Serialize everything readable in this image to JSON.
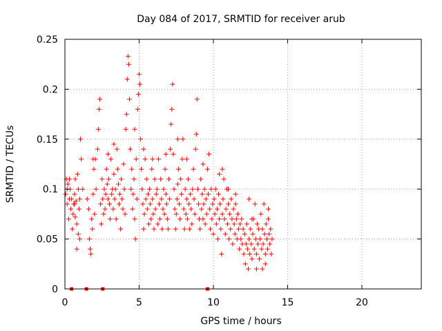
{
  "colors": {
    "series": "#ff0000",
    "axis": "#000000",
    "grid": "#a0a0a0",
    "background": "#ffffff"
  },
  "chart_data": {
    "type": "scatter",
    "title": "Day 084 of 2017, SRMTID for receiver arub",
    "xlabel": "GPS time / hours",
    "ylabel": "SRMTID / TECUs",
    "xlim": [
      0,
      24
    ],
    "ylim": [
      0,
      0.25
    ],
    "xticks": [
      0,
      5,
      10,
      15,
      20
    ],
    "xtick_labels": [
      "0",
      "5",
      "10",
      "15",
      "20"
    ],
    "yticks": [
      0,
      0.05,
      0.1,
      0.15,
      0.2,
      0.25
    ],
    "ytick_labels": [
      "0",
      "0.05",
      "0.1",
      "0.15",
      "0.2",
      "0.25"
    ],
    "grid": true,
    "marker": "plus",
    "zero_markers_x": [
      0.45,
      1.45,
      2.55,
      9.6
    ],
    "series": [
      {
        "name": "SRMTID",
        "points": [
          [
            0.05,
            0.095
          ],
          [
            0.1,
            0.11
          ],
          [
            0.15,
            0.085
          ],
          [
            0.2,
            0.105
          ],
          [
            0.25,
            0.07
          ],
          [
            0.3,
            0.09
          ],
          [
            0.35,
            0.1
          ],
          [
            0.4,
            0.08
          ],
          [
            0.5,
            0.06
          ],
          [
            0.55,
            0.075
          ],
          [
            0.6,
            0.085
          ],
          [
            0.65,
            0.095
          ],
          [
            0.7,
            0.072
          ],
          [
            0.75,
            0.088
          ],
          [
            0.8,
            0.065
          ],
          [
            0.85,
            0.115
          ],
          [
            0.9,
            0.1
          ],
          [
            0.95,
            0.08
          ],
          [
            1.0,
            0.09
          ],
          [
            1.05,
            0.15
          ],
          [
            1.1,
            0.13
          ],
          [
            0.8,
            0.04
          ],
          [
            0.9,
            0.055
          ],
          [
            1.0,
            0.05
          ],
          [
            0.3,
            0.11
          ],
          [
            0.15,
            0.1
          ],
          [
            0.45,
            0.09
          ],
          [
            0.65,
            0.085
          ],
          [
            1.5,
            0.09
          ],
          [
            1.6,
            0.08
          ],
          [
            1.65,
            0.05
          ],
          [
            1.7,
            0.04
          ],
          [
            1.75,
            0.035
          ],
          [
            1.8,
            0.07
          ],
          [
            1.85,
            0.06
          ],
          [
            1.9,
            0.095
          ],
          [
            1.95,
            0.12
          ],
          [
            2.0,
            0.075
          ],
          [
            2.05,
            0.13
          ],
          [
            2.1,
            0.1
          ],
          [
            2.2,
            0.14
          ],
          [
            2.25,
            0.16
          ],
          [
            2.3,
            0.18
          ],
          [
            2.35,
            0.19
          ],
          [
            2.4,
            0.085
          ],
          [
            2.45,
            0.065
          ],
          [
            2.5,
            0.11
          ],
          [
            2.55,
            0.09
          ],
          [
            2.6,
            0.075
          ],
          [
            2.65,
            0.1
          ],
          [
            2.7,
            0.08
          ],
          [
            2.75,
            0.095
          ],
          [
            2.8,
            0.12
          ],
          [
            2.85,
            0.105
          ],
          [
            2.9,
            0.09
          ],
          [
            2.95,
            0.11
          ],
          [
            3.0,
            0.085
          ],
          [
            3.05,
            0.07
          ],
          [
            3.1,
            0.13
          ],
          [
            3.15,
            0.095
          ],
          [
            3.2,
            0.1
          ],
          [
            3.25,
            0.08
          ],
          [
            3.3,
            0.115
          ],
          [
            3.35,
            0.09
          ],
          [
            3.4,
            0.1
          ],
          [
            3.45,
            0.07
          ],
          [
            3.5,
            0.14
          ],
          [
            3.55,
            0.12
          ],
          [
            3.6,
            0.105
          ],
          [
            3.65,
            0.085
          ],
          [
            3.7,
            0.095
          ],
          [
            3.75,
            0.06
          ],
          [
            3.8,
            0.11
          ],
          [
            3.85,
            0.09
          ],
          [
            3.9,
            0.08
          ],
          [
            3.95,
            0.125
          ],
          [
            4.0,
            0.1
          ],
          [
            4.05,
            0.075
          ],
          [
            4.1,
            0.16
          ],
          [
            4.15,
            0.175
          ],
          [
            4.2,
            0.21
          ],
          [
            4.25,
            0.233
          ],
          [
            4.3,
            0.225
          ],
          [
            4.35,
            0.19
          ],
          [
            4.4,
            0.14
          ],
          [
            4.45,
            0.1
          ],
          [
            4.5,
            0.12
          ],
          [
            4.55,
            0.08
          ],
          [
            4.6,
            0.095
          ],
          [
            4.65,
            0.11
          ],
          [
            4.7,
            0.07
          ],
          [
            4.75,
            0.05
          ],
          [
            4.8,
            0.13
          ],
          [
            4.85,
            0.09
          ],
          [
            4.9,
            0.18
          ],
          [
            4.95,
            0.195
          ],
          [
            5.0,
            0.215
          ],
          [
            5.05,
            0.205
          ],
          [
            5.1,
            0.15
          ],
          [
            5.15,
            0.12
          ],
          [
            5.2,
            0.1
          ],
          [
            5.25,
            0.085
          ],
          [
            5.3,
            0.06
          ],
          [
            5.35,
            0.075
          ],
          [
            5.4,
            0.13
          ],
          [
            5.45,
            0.09
          ],
          [
            5.5,
            0.11
          ],
          [
            5.55,
            0.08
          ],
          [
            5.6,
            0.095
          ],
          [
            5.65,
            0.065
          ],
          [
            5.7,
            0.1
          ],
          [
            5.75,
            0.085
          ],
          [
            5.8,
            0.07
          ],
          [
            5.85,
            0.12
          ],
          [
            5.9,
            0.09
          ],
          [
            5.95,
            0.075
          ],
          [
            6.0,
            0.06
          ],
          [
            6.05,
            0.11
          ],
          [
            6.1,
            0.08
          ],
          [
            6.15,
            0.095
          ],
          [
            6.2,
            0.1
          ],
          [
            6.25,
            0.065
          ],
          [
            6.3,
            0.13
          ],
          [
            6.35,
            0.085
          ],
          [
            6.4,
            0.07
          ],
          [
            6.45,
            0.11
          ],
          [
            6.5,
            0.09
          ],
          [
            6.55,
            0.06
          ],
          [
            6.6,
            0.08
          ],
          [
            6.65,
            0.1
          ],
          [
            6.7,
            0.075
          ],
          [
            6.75,
            0.12
          ],
          [
            6.8,
            0.095
          ],
          [
            6.85,
            0.085
          ],
          [
            6.9,
            0.07
          ],
          [
            6.95,
            0.06
          ],
          [
            7.0,
            0.11
          ],
          [
            7.05,
            0.09
          ],
          [
            7.1,
            0.14
          ],
          [
            7.15,
            0.165
          ],
          [
            7.2,
            0.18
          ],
          [
            7.25,
            0.205
          ],
          [
            7.3,
            0.135
          ],
          [
            7.35,
            0.1
          ],
          [
            7.4,
            0.08
          ],
          [
            7.45,
            0.06
          ],
          [
            7.5,
            0.075
          ],
          [
            7.55,
            0.09
          ],
          [
            7.6,
            0.105
          ],
          [
            7.65,
            0.12
          ],
          [
            7.7,
            0.085
          ],
          [
            7.75,
            0.07
          ],
          [
            7.8,
            0.11
          ],
          [
            7.85,
            0.095
          ],
          [
            7.9,
            0.13
          ],
          [
            7.95,
            0.15
          ],
          [
            8.0,
            0.08
          ],
          [
            8.05,
            0.06
          ],
          [
            8.1,
            0.1
          ],
          [
            8.15,
            0.075
          ],
          [
            8.2,
            0.09
          ],
          [
            8.25,
            0.07
          ],
          [
            8.3,
            0.11
          ],
          [
            8.35,
            0.085
          ],
          [
            8.4,
            0.06
          ],
          [
            8.45,
            0.095
          ],
          [
            8.5,
            0.08
          ],
          [
            8.55,
            0.065
          ],
          [
            8.6,
            0.1
          ],
          [
            8.65,
            0.12
          ],
          [
            8.7,
            0.09
          ],
          [
            8.75,
            0.075
          ],
          [
            8.8,
            0.14
          ],
          [
            8.85,
            0.155
          ],
          [
            8.9,
            0.19
          ],
          [
            8.95,
            0.1
          ],
          [
            9.0,
            0.085
          ],
          [
            9.05,
            0.07
          ],
          [
            9.1,
            0.06
          ],
          [
            9.15,
            0.11
          ],
          [
            9.2,
            0.08
          ],
          [
            9.25,
            0.095
          ],
          [
            9.3,
            0.07
          ],
          [
            9.35,
            0.085
          ],
          [
            9.4,
            0.1
          ],
          [
            9.45,
            0.065
          ],
          [
            9.5,
            0.09
          ],
          [
            9.55,
            0.075
          ],
          [
            9.6,
            0.12
          ],
          [
            9.65,
            0.095
          ],
          [
            9.7,
            0.135
          ],
          [
            9.75,
            0.08
          ],
          [
            9.8,
            0.06
          ],
          [
            9.85,
            0.1
          ],
          [
            9.9,
            0.07
          ],
          [
            9.95,
            0.085
          ],
          [
            10.0,
            0.055
          ],
          [
            10.05,
            0.09
          ],
          [
            10.1,
            0.075
          ],
          [
            10.15,
            0.1
          ],
          [
            10.2,
            0.065
          ],
          [
            10.25,
            0.08
          ],
          [
            10.3,
            0.05
          ],
          [
            10.35,
            0.095
          ],
          [
            10.4,
            0.07
          ],
          [
            10.45,
            0.085
          ],
          [
            10.5,
            0.06
          ],
          [
            10.55,
            0.035
          ],
          [
            10.6,
            0.075
          ],
          [
            10.65,
            0.09
          ],
          [
            10.7,
            0.11
          ],
          [
            10.75,
            0.07
          ],
          [
            10.8,
            0.055
          ],
          [
            10.85,
            0.08
          ],
          [
            10.9,
            0.1
          ],
          [
            10.95,
            0.065
          ],
          [
            11.0,
            0.085
          ],
          [
            11.05,
            0.05
          ],
          [
            11.1,
            0.075
          ],
          [
            11.15,
            0.06
          ],
          [
            11.2,
            0.09
          ],
          [
            11.25,
            0.07
          ],
          [
            11.3,
            0.045
          ],
          [
            11.35,
            0.08
          ],
          [
            11.4,
            0.065
          ],
          [
            11.45,
            0.055
          ],
          [
            11.5,
            0.085
          ],
          [
            11.55,
            0.07
          ],
          [
            11.6,
            0.05
          ],
          [
            11.65,
            0.075
          ],
          [
            11.7,
            0.06
          ],
          [
            11.75,
            0.04
          ],
          [
            11.8,
            0.065
          ],
          [
            11.85,
            0.05
          ],
          [
            11.9,
            0.07
          ],
          [
            11.95,
            0.045
          ],
          [
            12.0,
            0.06
          ],
          [
            12.05,
            0.035
          ],
          [
            12.1,
            0.055
          ],
          [
            12.15,
            0.025
          ],
          [
            12.2,
            0.045
          ],
          [
            12.25,
            0.065
          ],
          [
            12.3,
            0.04
          ],
          [
            12.35,
            0.02
          ],
          [
            12.4,
            0.05
          ],
          [
            12.45,
            0.035
          ],
          [
            12.5,
            0.06
          ],
          [
            12.55,
            0.045
          ],
          [
            12.6,
            0.03
          ],
          [
            12.65,
            0.055
          ],
          [
            12.7,
            0.07
          ],
          [
            12.75,
            0.04
          ],
          [
            12.8,
            0.085
          ],
          [
            12.85,
            0.05
          ],
          [
            12.9,
            0.035
          ],
          [
            12.95,
            0.065
          ],
          [
            13.0,
            0.045
          ],
          [
            13.05,
            0.06
          ],
          [
            13.1,
            0.03
          ],
          [
            13.15,
            0.05
          ],
          [
            13.2,
            0.075
          ],
          [
            13.25,
            0.04
          ],
          [
            13.3,
            0.06
          ],
          [
            13.35,
            0.045
          ],
          [
            13.4,
            0.085
          ],
          [
            13.45,
            0.055
          ],
          [
            13.5,
            0.035
          ],
          [
            13.55,
            0.065
          ],
          [
            13.6,
            0.05
          ],
          [
            13.65,
            0.04
          ],
          [
            13.7,
            0.07
          ],
          [
            13.75,
            0.055
          ],
          [
            13.8,
            0.045
          ],
          [
            13.85,
            0.06
          ],
          [
            13.9,
            0.035
          ],
          [
            13.95,
            0.05
          ],
          [
            13.7,
            0.08
          ],
          [
            13.5,
            0.025
          ],
          [
            12.9,
            0.02
          ],
          [
            13.3,
            0.02
          ],
          [
            12.4,
            0.09
          ],
          [
            12.6,
            0.07
          ],
          [
            11.5,
            0.095
          ],
          [
            11.0,
            0.1
          ],
          [
            10.4,
            0.115
          ],
          [
            10.6,
            0.12
          ],
          [
            9.3,
            0.125
          ],
          [
            8.2,
            0.13
          ],
          [
            7.6,
            0.15
          ],
          [
            6.8,
            0.135
          ],
          [
            5.9,
            0.13
          ],
          [
            5.3,
            0.14
          ],
          [
            4.7,
            0.16
          ],
          [
            3.3,
            0.145
          ],
          [
            2.9,
            0.135
          ],
          [
            1.9,
            0.13
          ],
          [
            1.2,
            0.1
          ],
          [
            0.7,
            0.11
          ]
        ]
      }
    ]
  }
}
